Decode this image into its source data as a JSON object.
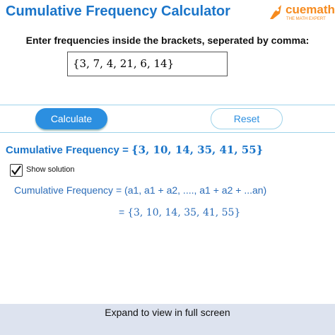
{
  "header": {
    "title": "Cumulative Frequency Calculator",
    "logo": {
      "brand": "cuemath",
      "tagline": "THE MATH EXPERT"
    }
  },
  "form": {
    "prompt": "Enter frequencies inside the brackets, seperated by comma:",
    "input": "{3, 7, 4, 21, 6, 14}",
    "buttons": [
      "Calculate",
      "Reset"
    ]
  },
  "result": {
    "label": "Cumulative Frequency",
    "equals": "=",
    "value": "{3, 10, 14, 35, 41, 55}"
  },
  "solution": {
    "checkbox": "Show solution",
    "lines": [
      {
        "left": "Cumulative Frequency",
        "equals": "=",
        "right": "(a1, a1 + a2, ...., a1 + a2 + ...an)"
      },
      {
        "equals": "=",
        "right": "{3, 10, 14, 35, 41, 55}"
      }
    ]
  },
  "footer": {
    "text": "Expand to view in full screen"
  }
}
